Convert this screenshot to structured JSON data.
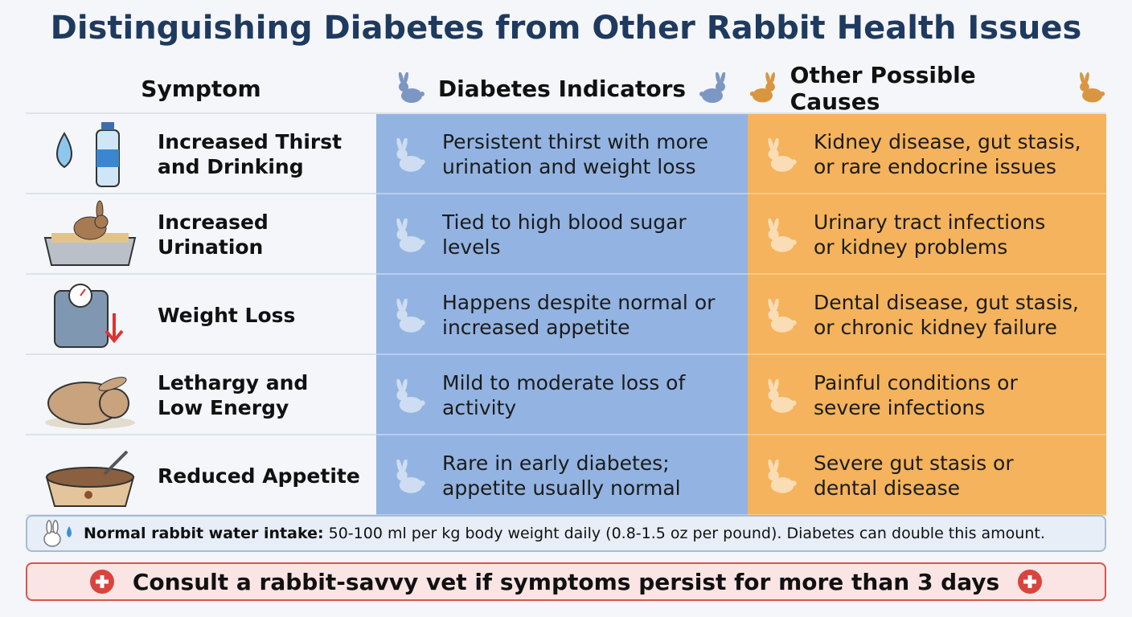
{
  "title": "Distinguishing Diabetes from Other Rabbit Health Issues",
  "table": {
    "headers": [
      "Symptom",
      "Diabetes Indicators",
      "Other Possible Causes"
    ],
    "rows": [
      {
        "symptom": [
          "Increased Thirst",
          "and Drinking"
        ],
        "diabetes": [
          "Persistent thirst with more",
          "urination and weight loss"
        ],
        "other": [
          "Kidney disease, gut stasis,",
          "or rare endocrine issues"
        ]
      },
      {
        "symptom": [
          "Increased",
          "Urination"
        ],
        "diabetes": [
          "Tied to high blood sugar",
          "levels"
        ],
        "other": [
          "Urinary tract infections",
          "or kidney problems"
        ]
      },
      {
        "symptom": [
          "Weight Loss"
        ],
        "diabetes": [
          "Happens despite normal or",
          "increased appetite"
        ],
        "other": [
          "Dental disease, gut stasis,",
          "or chronic kidney failure"
        ]
      },
      {
        "symptom": [
          "Lethargy and",
          "Low Energy"
        ],
        "diabetes": [
          "Mild to moderate loss of",
          "activity"
        ],
        "other": [
          "Painful conditions or",
          "severe infections"
        ]
      },
      {
        "symptom": [
          "Reduced Appetite"
        ],
        "diabetes": [
          "Rare in early diabetes;",
          "appetite usually normal"
        ],
        "other": [
          "Severe gut stasis or",
          "dental disease"
        ]
      }
    ]
  },
  "note": {
    "label": "Normal rabbit water intake:",
    "text": "50-100 ml per kg body weight daily (0.8-1.5 oz per pound). Diabetes can double this amount."
  },
  "alert": "Consult a rabbit-savvy vet if symptoms persist for more than 3 days"
}
